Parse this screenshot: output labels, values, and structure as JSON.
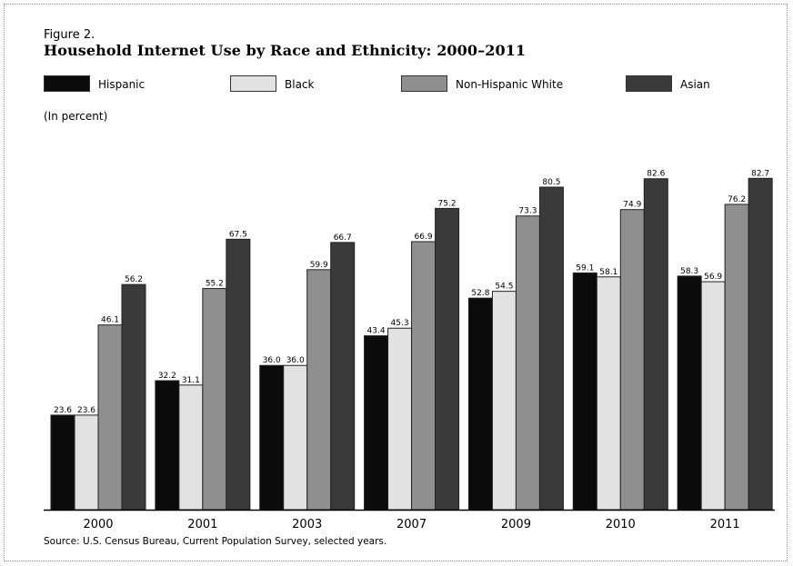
{
  "figure_label": "Figure 2.",
  "units_label": "(In percent)",
  "source_note": "Source: U.S. Census Bureau, Current Population Survey, selected years.",
  "colors": {
    "Hispanic": "#0b0b0b",
    "Black": "#e2e2e2",
    "Non-Hispanic White": "#8f8f8f",
    "Asian": "#3a3a3a"
  },
  "chart_data": {
    "type": "bar",
    "title": "Household Internet Use by Race and Ethnicity: 2000–2011",
    "xlabel": "",
    "ylabel": "",
    "ylim": [
      0,
      100
    ],
    "grid": false,
    "legend_position": "top",
    "categories": [
      "2000",
      "2001",
      "2003",
      "2007",
      "2009",
      "2010",
      "2011"
    ],
    "series": [
      {
        "name": "Hispanic",
        "values": [
          23.6,
          32.2,
          36.0,
          43.4,
          52.8,
          59.1,
          58.3
        ],
        "labels": [
          "23.6",
          "32.2",
          "36.0",
          "43.4",
          "52.8",
          "59.1",
          "58.3"
        ]
      },
      {
        "name": "Black",
        "values": [
          23.6,
          31.1,
          36.0,
          45.3,
          54.5,
          58.1,
          56.9
        ],
        "labels": [
          "23.6",
          "31.1",
          "36.0",
          "45.3",
          "54.5",
          "58.1",
          "56.9"
        ]
      },
      {
        "name": "Non-Hispanic White",
        "values": [
          46.1,
          55.2,
          59.9,
          66.9,
          73.3,
          74.9,
          76.2
        ],
        "labels": [
          "46.1",
          "55.2",
          "59.9",
          "66.9",
          "73.3",
          "74.9",
          "76.2"
        ]
      },
      {
        "name": "Asian",
        "values": [
          56.2,
          67.5,
          66.7,
          75.2,
          80.5,
          82.6,
          82.7
        ],
        "labels": [
          "56.2",
          "67.5",
          "66.7",
          "75.2",
          "80.5",
          "82.6",
          "82.7"
        ]
      }
    ]
  }
}
